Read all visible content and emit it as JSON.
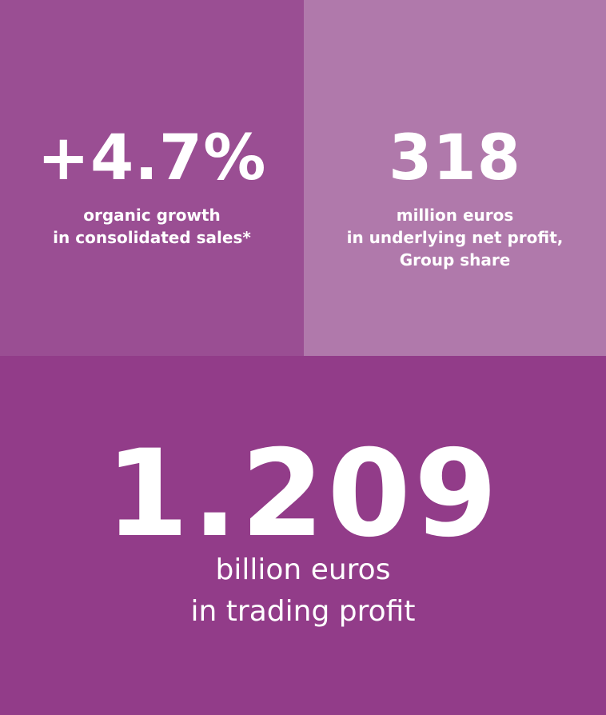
{
  "tiles": [
    {
      "figure": "+4.7%",
      "lines": [
        "organic growth",
        "in consolidated sales*"
      ]
    },
    {
      "figure": "318",
      "lines": [
        "million euros",
        "in underlying net profit,",
        "Group share"
      ]
    },
    {
      "figure": "1.209",
      "lines": [
        "billion euros",
        "in trading profit"
      ]
    }
  ]
}
